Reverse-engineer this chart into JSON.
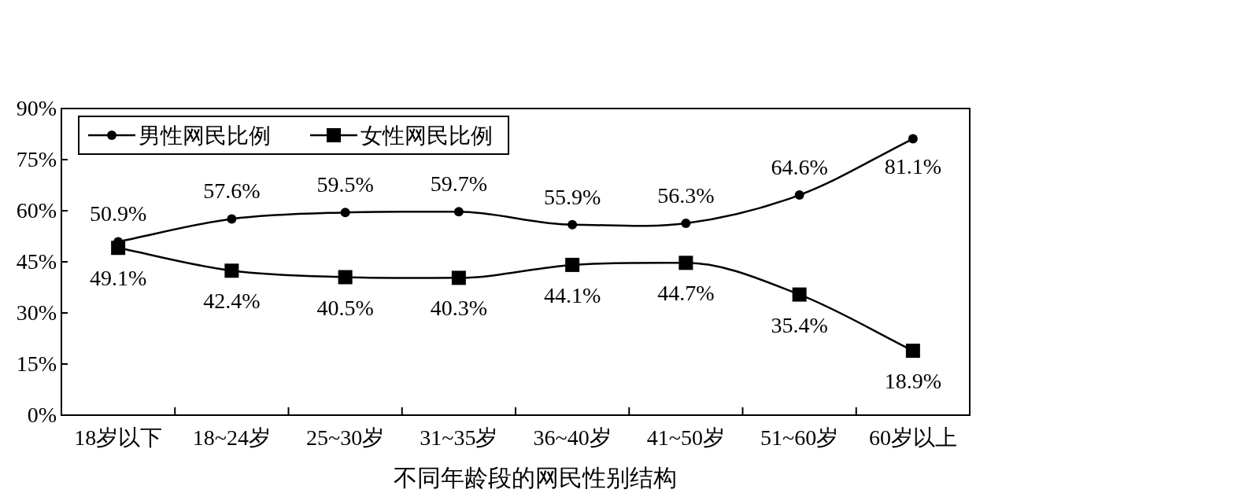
{
  "chart_data": {
    "type": "line",
    "xlabel": "不同年龄段的网民性别结构",
    "categories": [
      "18岁以下",
      "18~24岁",
      "25~30岁",
      "31~35岁",
      "36~40岁",
      "41~50岁",
      "51~60岁",
      "60岁以上"
    ],
    "series": [
      {
        "name": "男性网民比例",
        "color": "#000000",
        "marker": "circle",
        "values": [
          50.9,
          57.6,
          59.5,
          59.7,
          55.9,
          56.3,
          64.6,
          81.1
        ],
        "value_labels": [
          "50.9%",
          "57.6%",
          "59.5%",
          "59.7%",
          "55.9%",
          "56.3%",
          "64.6%",
          "81.1%"
        ]
      },
      {
        "name": "女性网民比例",
        "color": "#000000",
        "marker": "square",
        "values": [
          49.1,
          42.4,
          40.5,
          40.3,
          44.1,
          44.7,
          35.4,
          18.9
        ],
        "value_labels": [
          "49.1%",
          "42.4%",
          "40.5%",
          "40.3%",
          "44.1%",
          "44.7%",
          "35.4%",
          "18.9%"
        ]
      }
    ],
    "ylim": [
      0,
      90
    ],
    "yticks": [
      {
        "value": 0,
        "label": "0%"
      },
      {
        "value": 15,
        "label": "15%"
      },
      {
        "value": 30,
        "label": "30%"
      },
      {
        "value": 45,
        "label": "45%"
      },
      {
        "value": 60,
        "label": "60%"
      },
      {
        "value": 75,
        "label": "75%"
      },
      {
        "value": 90,
        "label": "90%"
      }
    ],
    "grid": false,
    "legend": "top left",
    "line_style": "solid"
  }
}
